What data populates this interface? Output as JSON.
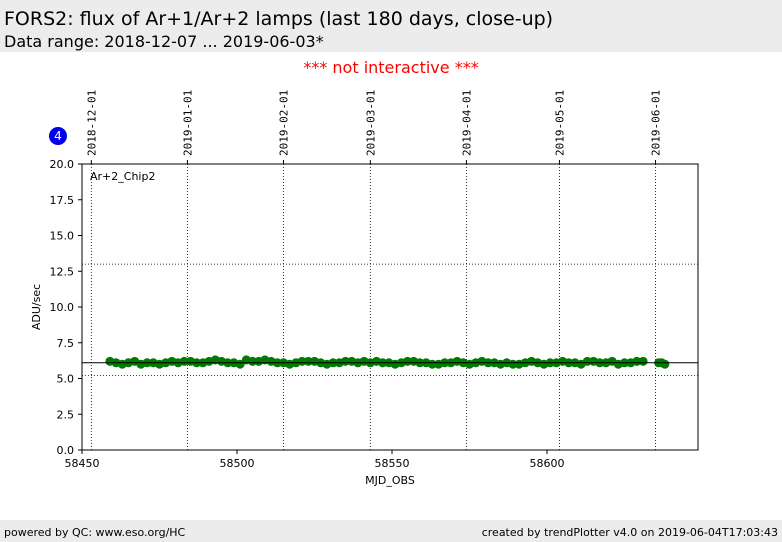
{
  "chart_data": {
    "type": "scatter",
    "title": "FORS2: flux of Ar+1/Ar+2 lamps (last 180 days, close-up)",
    "subtitle": "Data range: 2018-12-07 ... 2019-06-03*",
    "notice": "*** not interactive ***",
    "badge": "4",
    "annotation": "Ar+2_Chip2",
    "xlabel": "MJD_OBS",
    "ylabel": "ADU/sec",
    "footer_left": "powered by QC: www.eso.org/HC",
    "footer_right": "created by trendPlotter v4.0 on 2019-06-04T17:03:43",
    "xlim": [
      58450,
      58648.7
    ],
    "xticks": [
      58450,
      58500,
      58550,
      58600
    ],
    "x2ticks": [
      {
        "value": 58453,
        "label": "2018-12-01"
      },
      {
        "value": 58484,
        "label": "2019-01-01"
      },
      {
        "value": 58515,
        "label": "2019-02-01"
      },
      {
        "value": 58543,
        "label": "2019-03-01"
      },
      {
        "value": 58574,
        "label": "2019-04-01"
      },
      {
        "value": 58604,
        "label": "2019-05-01"
      },
      {
        "value": 58635,
        "label": "2019-06-01"
      }
    ],
    "ylim": [
      0,
      20
    ],
    "yticks": [
      {
        "value": 0,
        "label": "0.0"
      },
      {
        "value": 2.5,
        "label": "2.5"
      },
      {
        "value": 5,
        "label": "5.0"
      },
      {
        "value": 7.5,
        "label": "7.5"
      },
      {
        "value": 10,
        "label": "10.0"
      },
      {
        "value": 12.5,
        "label": "12.5"
      },
      {
        "value": 15,
        "label": "15.0"
      },
      {
        "value": 17.5,
        "label": "17.5"
      },
      {
        "value": 20,
        "label": "20.0"
      }
    ],
    "grid": true,
    "mean": 6.1,
    "thresholds": [
      5.2,
      13.0
    ],
    "color": "#007a00",
    "x": [
      58459,
      58461,
      58463,
      58465,
      58467,
      58469,
      58471,
      58473,
      58475,
      58477,
      58479,
      58481,
      58483,
      58485,
      58487,
      58489,
      58491,
      58493,
      58495,
      58497,
      58499,
      58501,
      58503,
      58505,
      58507,
      58509,
      58511,
      58513,
      58515,
      58517,
      58519,
      58521,
      58523,
      58525,
      58527,
      58529,
      58531,
      58533,
      58535,
      58537,
      58539,
      58541,
      58543,
      58545,
      58547,
      58549,
      58551,
      58553,
      58555,
      58557,
      58559,
      58561,
      58563,
      58565,
      58567,
      58569,
      58571,
      58573,
      58575,
      58577,
      58579,
      58581,
      58583,
      58585,
      58587,
      58589,
      58591,
      58593,
      58595,
      58597,
      58599,
      58601,
      58603,
      58605,
      58607,
      58609,
      58611,
      58613,
      58615,
      58617,
      58619,
      58621,
      58623,
      58625,
      58627,
      58629,
      58631,
      58636,
      58637,
      58638
    ],
    "values": [
      6.2,
      6.1,
      6.0,
      6.1,
      6.2,
      6.0,
      6.1,
      6.1,
      6.0,
      6.1,
      6.2,
      6.1,
      6.2,
      6.2,
      6.1,
      6.1,
      6.2,
      6.3,
      6.2,
      6.1,
      6.1,
      6.0,
      6.3,
      6.2,
      6.2,
      6.3,
      6.2,
      6.1,
      6.1,
      6.0,
      6.1,
      6.2,
      6.2,
      6.2,
      6.1,
      6.0,
      6.1,
      6.1,
      6.2,
      6.2,
      6.1,
      6.2,
      6.1,
      6.2,
      6.1,
      6.1,
      6.0,
      6.1,
      6.2,
      6.2,
      6.1,
      6.1,
      6.0,
      6.0,
      6.1,
      6.1,
      6.2,
      6.1,
      6.0,
      6.1,
      6.2,
      6.1,
      6.1,
      6.0,
      6.1,
      6.0,
      6.0,
      6.1,
      6.2,
      6.1,
      6.0,
      6.1,
      6.1,
      6.2,
      6.1,
      6.1,
      6.0,
      6.2,
      6.2,
      6.1,
      6.1,
      6.2,
      6.0,
      6.1,
      6.1,
      6.2,
      6.2,
      6.1,
      6.1,
      6.0
    ]
  }
}
